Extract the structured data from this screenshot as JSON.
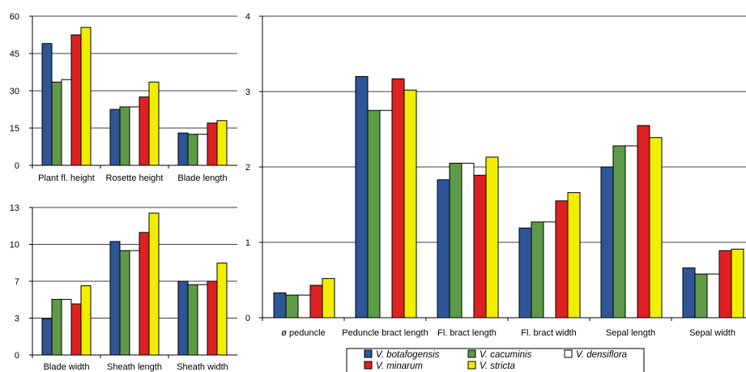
{
  "colors": {
    "V. botafogensis": "#2f5597",
    "V. cacuminis": "#5e9a47",
    "V. densiflora": "#ffffff",
    "V. minarum": "#dd2121",
    "V. stricta": "#f2ee00"
  },
  "legend": [
    "V. botafogensis",
    "V. cacuminis",
    "V. densiflora",
    "V. minarum",
    "V. stricta"
  ],
  "chart_data": [
    {
      "type": "bar",
      "categories": [
        "Plant fl. height",
        "Rosette height",
        "Blade length"
      ],
      "ylim": [
        0,
        60
      ],
      "yticks": [
        "0",
        "15",
        "30",
        "45",
        "60"
      ],
      "ytick_values": [
        0,
        15,
        30,
        45,
        60
      ],
      "grid": true,
      "series": [
        {
          "name": "V. botafogensis",
          "values": [
            49,
            22.5,
            13
          ]
        },
        {
          "name": "V. cacuminis",
          "values": [
            33.5,
            23.5,
            12.5
          ]
        },
        {
          "name": "V. densiflora",
          "values": [
            34.5,
            23.5,
            12.5
          ]
        },
        {
          "name": "V. minarum",
          "values": [
            52.5,
            27.5,
            17
          ]
        },
        {
          "name": "V. stricta",
          "values": [
            55.5,
            33.5,
            18
          ]
        }
      ]
    },
    {
      "type": "bar",
      "categories": [
        "Blade width",
        "Sheath length",
        "Sheath width"
      ],
      "ylim": [
        0,
        13
      ],
      "yticks": [
        "0",
        "3",
        "7",
        "10",
        "13"
      ],
      "ytick_values": [
        0,
        3.25,
        6.5,
        9.75,
        13
      ],
      "grid": true,
      "series": [
        {
          "name": "V. botafogensis",
          "values": [
            3.2,
            10,
            6.5
          ]
        },
        {
          "name": "V. cacuminis",
          "values": [
            4.9,
            9.2,
            6.2
          ]
        },
        {
          "name": "V. densiflora",
          "values": [
            4.9,
            9.2,
            6.2
          ]
        },
        {
          "name": "V. minarum",
          "values": [
            4.5,
            10.8,
            6.5
          ]
        },
        {
          "name": "V. stricta",
          "values": [
            6.1,
            12.5,
            8.1
          ]
        }
      ]
    },
    {
      "type": "bar",
      "categories": [
        "ø peduncle",
        "Peduncle bract length",
        "Fl. bract length",
        "Fl. bract width",
        "Sepal length",
        "Sepal width"
      ],
      "ylim": [
        0,
        4
      ],
      "yticks": [
        "0",
        "1",
        "2",
        "3",
        "4"
      ],
      "ytick_values": [
        0,
        1,
        2,
        3,
        4
      ],
      "grid": true,
      "series": [
        {
          "name": "V. botafogensis",
          "values": [
            0.33,
            3.2,
            1.83,
            1.19,
            2.0,
            0.66
          ]
        },
        {
          "name": "V. cacuminis",
          "values": [
            0.3,
            2.75,
            2.05,
            1.27,
            2.28,
            0.58
          ]
        },
        {
          "name": "V. densiflora",
          "values": [
            0.3,
            2.75,
            2.05,
            1.27,
            2.28,
            0.58
          ]
        },
        {
          "name": "V. minarum",
          "values": [
            0.43,
            3.17,
            1.89,
            1.55,
            2.55,
            0.89
          ]
        },
        {
          "name": "V. stricta",
          "values": [
            0.52,
            3.02,
            2.13,
            1.66,
            2.39,
            0.91
          ]
        }
      ]
    }
  ]
}
